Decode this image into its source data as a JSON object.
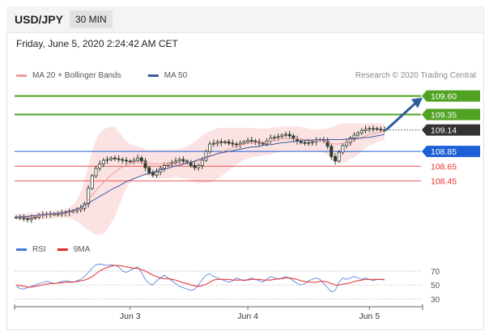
{
  "header": {
    "pair": "USD/JPY",
    "timeframe": "30 MIN"
  },
  "timestamp": "Friday, June 5, 2020 2:24:42 AM CET",
  "credit": "Research © 2020 Trading Central",
  "colors": {
    "resistance": "#4fa321",
    "support": "#e5302d",
    "pivot": "#1d5fd6",
    "current": "#333333",
    "candle": "#2f3b2f",
    "bollinger": "#fcdede",
    "ma20": "#ef9a9a",
    "ma50": "#3a5a9a",
    "rsi": "#4a78d8",
    "rsi_ma": "#e52b2b",
    "arrow": "#2f5f9b"
  },
  "chart_data": [
    {
      "type": "candlestick",
      "legend": [
        {
          "label": "MA 20 + Bollinger Bands",
          "color": "#ef9a9a"
        },
        {
          "label": "MA 50",
          "color": "#3a5a9a"
        }
      ],
      "x_ticks": [
        "Jun 3",
        "Jun 4",
        "Jun 5"
      ],
      "x_tick_index": [
        30,
        61,
        93
      ],
      "n_bars": 98,
      "ylim": [
        107.7,
        109.75
      ],
      "levels": [
        {
          "name": "resistance-2",
          "label": "109.60",
          "value": 109.6,
          "kind": "resistance"
        },
        {
          "name": "resistance-1",
          "label": "109.35",
          "value": 109.35,
          "kind": "resistance"
        },
        {
          "name": "current",
          "label": "109.14",
          "value": 109.14,
          "kind": "current"
        },
        {
          "name": "pivot",
          "label": "108.85",
          "value": 108.85,
          "kind": "pivot"
        },
        {
          "name": "support-1",
          "label": "108.65",
          "value": 108.65,
          "kind": "support"
        },
        {
          "name": "support-2",
          "label": "108.45",
          "value": 108.45,
          "kind": "support"
        }
      ],
      "close": [
        107.96,
        107.95,
        107.94,
        107.93,
        107.95,
        107.96,
        107.98,
        107.99,
        108.0,
        108.0,
        108.0,
        108.0,
        108.01,
        108.02,
        108.03,
        108.04,
        108.06,
        108.08,
        108.14,
        108.35,
        108.52,
        108.62,
        108.68,
        108.73,
        108.74,
        108.76,
        108.75,
        108.74,
        108.73,
        108.72,
        108.71,
        108.73,
        108.76,
        108.72,
        108.63,
        108.56,
        108.53,
        108.57,
        108.62,
        108.66,
        108.68,
        108.7,
        108.72,
        108.74,
        108.72,
        108.7,
        108.66,
        108.63,
        108.66,
        108.73,
        108.85,
        108.95,
        108.96,
        108.98,
        108.97,
        108.98,
        108.96,
        108.95,
        108.94,
        108.96,
        108.98,
        109.0,
        108.99,
        108.98,
        108.96,
        108.95,
        108.99,
        109.03,
        109.04,
        109.05,
        109.07,
        109.08,
        109.06,
        109.02,
        108.99,
        108.97,
        108.96,
        108.97,
        108.98,
        109.0,
        109.01,
        108.99,
        108.92,
        108.78,
        108.72,
        108.84,
        108.93,
        108.97,
        109.03,
        109.07,
        109.1,
        109.13,
        109.15,
        109.16,
        109.16,
        109.15,
        109.14,
        109.14
      ],
      "ma50": [
        107.96,
        107.96,
        107.97,
        107.97,
        107.98,
        107.98,
        107.99,
        107.99,
        108.0,
        108.0,
        108.01,
        108.01,
        108.02,
        108.03,
        108.04,
        108.05,
        108.07,
        108.09,
        108.12,
        108.15,
        108.18,
        108.21,
        108.24,
        108.27,
        108.3,
        108.33,
        108.36,
        108.38,
        108.41,
        108.44,
        108.46,
        108.48,
        108.5,
        108.52,
        108.54,
        108.55,
        108.57,
        108.58,
        108.6,
        108.61,
        108.62,
        108.64,
        108.65,
        108.66,
        108.68,
        108.69,
        108.7,
        108.72,
        108.74,
        108.75,
        108.77,
        108.79,
        108.8,
        108.82,
        108.83,
        108.84,
        108.85,
        108.86,
        108.87,
        108.88,
        108.89,
        108.9,
        108.91,
        108.91,
        108.92,
        108.93,
        108.94,
        108.94,
        108.95,
        108.96,
        108.97,
        108.97,
        108.98,
        108.98,
        108.99,
        108.99,
        109.0,
        109.0,
        109.0,
        109.01,
        109.01,
        109.01,
        109.01,
        109.01,
        109.01,
        109.01,
        109.01,
        109.02,
        109.02,
        109.02,
        109.03,
        109.03,
        109.04,
        109.04,
        109.05,
        109.06,
        109.07,
        109.08
      ],
      "ma20": [
        107.96,
        107.96,
        107.96,
        107.96,
        107.97,
        107.97,
        107.98,
        107.98,
        107.99,
        107.99,
        108.0,
        108.0,
        108.01,
        108.01,
        108.02,
        108.03,
        108.05,
        108.08,
        108.13,
        108.19,
        108.26,
        108.32,
        108.38,
        108.43,
        108.48,
        108.53,
        108.57,
        108.61,
        108.64,
        108.67,
        108.69,
        108.7,
        108.71,
        108.71,
        108.7,
        108.69,
        108.68,
        108.68,
        108.68,
        108.68,
        108.68,
        108.69,
        108.69,
        108.69,
        108.69,
        108.7,
        108.7,
        108.71,
        108.72,
        108.74,
        108.76,
        108.78,
        108.8,
        108.82,
        108.84,
        108.86,
        108.88,
        108.9,
        108.92,
        108.93,
        108.95,
        108.96,
        108.97,
        108.97,
        108.97,
        108.98,
        108.98,
        108.99,
        109.0,
        109.01,
        109.02,
        109.02,
        109.02,
        109.02,
        109.02,
        109.02,
        109.01,
        109.01,
        109.0,
        109.0,
        109.0,
        108.99,
        108.98,
        108.96,
        108.95,
        108.95,
        108.96,
        108.97,
        108.99,
        109.0,
        109.02,
        109.04,
        109.06,
        109.08,
        109.09,
        109.1,
        109.11,
        109.12
      ],
      "bb_upper": [
        108.0,
        108.0,
        108.01,
        108.01,
        108.02,
        108.02,
        108.03,
        108.03,
        108.04,
        108.04,
        108.05,
        108.05,
        108.06,
        108.07,
        108.09,
        108.13,
        108.2,
        108.3,
        108.45,
        108.65,
        108.85,
        109.0,
        109.1,
        109.15,
        109.17,
        109.18,
        109.18,
        109.12,
        109.05,
        108.99,
        108.95,
        108.93,
        108.92,
        108.9,
        108.88,
        108.87,
        108.87,
        108.87,
        108.87,
        108.87,
        108.87,
        108.88,
        108.88,
        108.88,
        108.9,
        108.92,
        108.95,
        108.98,
        109.02,
        109.06,
        109.1,
        109.13,
        109.15,
        109.16,
        109.17,
        109.17,
        109.17,
        109.17,
        109.17,
        109.17,
        109.17,
        109.17,
        109.17,
        109.16,
        109.16,
        109.16,
        109.16,
        109.17,
        109.18,
        109.18,
        109.19,
        109.19,
        109.19,
        109.19,
        109.19,
        109.18,
        109.17,
        109.16,
        109.15,
        109.15,
        109.15,
        109.15,
        109.16,
        109.18,
        109.2,
        109.22,
        109.23,
        109.23,
        109.23,
        109.23,
        109.23,
        109.23,
        109.23,
        109.23,
        109.23,
        109.23,
        109.23,
        109.23
      ],
      "bb_lower": [
        107.92,
        107.92,
        107.91,
        107.91,
        107.91,
        107.92,
        107.92,
        107.93,
        107.93,
        107.94,
        107.94,
        107.95,
        107.95,
        107.95,
        107.95,
        107.93,
        107.9,
        107.86,
        107.82,
        107.78,
        107.75,
        107.72,
        107.72,
        107.73,
        107.8,
        107.88,
        107.96,
        108.1,
        108.23,
        108.35,
        108.43,
        108.47,
        108.5,
        108.52,
        108.52,
        108.51,
        108.49,
        108.48,
        108.48,
        108.48,
        108.48,
        108.49,
        108.5,
        108.5,
        108.48,
        108.48,
        108.45,
        108.44,
        108.42,
        108.42,
        108.42,
        108.43,
        108.45,
        108.48,
        108.51,
        108.55,
        108.59,
        108.63,
        108.67,
        108.7,
        108.73,
        108.75,
        108.77,
        108.78,
        108.78,
        108.8,
        108.8,
        108.81,
        108.82,
        108.84,
        108.85,
        108.85,
        108.85,
        108.85,
        108.85,
        108.86,
        108.85,
        108.86,
        108.85,
        108.85,
        108.85,
        108.83,
        108.8,
        108.74,
        108.7,
        108.68,
        108.69,
        108.71,
        108.75,
        108.77,
        108.81,
        108.85,
        108.89,
        108.93,
        108.95,
        108.97,
        108.99,
        109.01
      ]
    },
    {
      "type": "line",
      "legend": [
        {
          "label": "RSI",
          "color": "#4a78d8"
        },
        {
          "label": "9MA",
          "color": "#e52b2b"
        }
      ],
      "y_ticks": [
        "70",
        "50",
        "30"
      ],
      "y_tick_values": [
        70,
        50,
        30
      ],
      "ylim": [
        20,
        85
      ],
      "series": [
        {
          "name": "RSI",
          "values": [
            48,
            45,
            44,
            46,
            48,
            50,
            52,
            53,
            55,
            54,
            52,
            53,
            55,
            56,
            55,
            54,
            56,
            58,
            62,
            68,
            74,
            79,
            80,
            79,
            78,
            79,
            78,
            76,
            70,
            68,
            71,
            74,
            76,
            68,
            58,
            52,
            50,
            56,
            60,
            64,
            60,
            56,
            52,
            48,
            46,
            44,
            42,
            44,
            50,
            58,
            64,
            66,
            62,
            60,
            58,
            56,
            54,
            56,
            60,
            58,
            56,
            58,
            60,
            58,
            56,
            54,
            58,
            62,
            60,
            58,
            60,
            62,
            60,
            56,
            52,
            50,
            52,
            56,
            58,
            60,
            58,
            52,
            46,
            40,
            42,
            54,
            60,
            58,
            60,
            62,
            60,
            58,
            60,
            58,
            56,
            58,
            58,
            57
          ]
        },
        {
          "name": "9MA",
          "values": [
            50,
            49,
            48,
            47,
            47,
            48,
            49,
            50,
            51,
            52,
            52,
            53,
            53,
            54,
            54,
            54,
            55,
            56,
            57,
            59,
            62,
            66,
            70,
            73,
            75,
            77,
            78,
            78,
            77,
            76,
            75,
            74,
            74,
            72,
            70,
            67,
            64,
            62,
            60,
            59,
            59,
            58,
            57,
            55,
            53,
            52,
            50,
            49,
            48,
            49,
            51,
            54,
            57,
            58,
            58,
            58,
            58,
            57,
            57,
            57,
            57,
            57,
            58,
            58,
            58,
            57,
            57,
            57,
            58,
            59,
            59,
            60,
            60,
            59,
            58,
            56,
            55,
            54,
            54,
            54,
            55,
            55,
            54,
            52,
            50,
            50,
            51,
            52,
            53,
            55,
            56,
            57,
            58,
            58,
            58,
            58,
            58,
            58
          ]
        }
      ]
    }
  ]
}
